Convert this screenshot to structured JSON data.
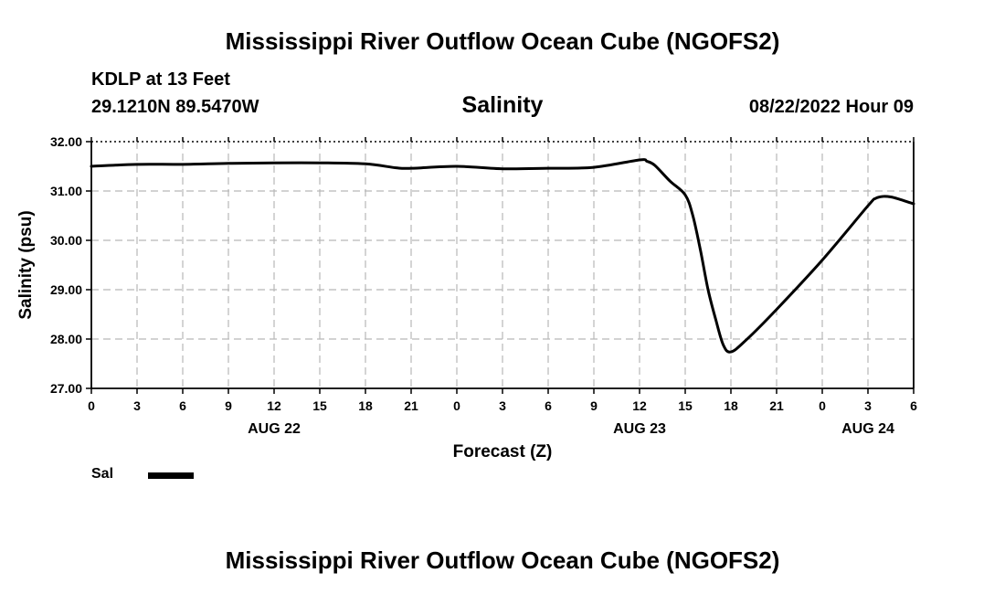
{
  "header": {
    "main_title": "Mississippi River Outflow Ocean Cube (NGOFS2)",
    "station": "KDLP at 13 Feet",
    "coordinates": "29.1210N  89.5470W",
    "run_time": "08/22/2022 Hour 09",
    "bottom_title": "Mississippi River Outflow Ocean Cube (NGOFS2)"
  },
  "legend": {
    "label": "Sal"
  },
  "chart_data": {
    "type": "line",
    "title": "Salinity",
    "xlabel": "Forecast (Z)",
    "ylabel": "Salinity (psu)",
    "ylim": [
      27.0,
      32.0
    ],
    "xlim": [
      0,
      54
    ],
    "y_ticks": [
      27.0,
      28.0,
      29.0,
      30.0,
      31.0,
      32.0
    ],
    "y_tick_labels": [
      "27.00",
      "28.00",
      "29.00",
      "30.00",
      "31.00",
      "32.00"
    ],
    "x_ticks": [
      0,
      3,
      6,
      9,
      12,
      15,
      18,
      21,
      24,
      27,
      30,
      33,
      36,
      39,
      42,
      45,
      48,
      51,
      54
    ],
    "x_tick_labels": [
      "0",
      "3",
      "6",
      "9",
      "12",
      "15",
      "18",
      "21",
      "0",
      "3",
      "6",
      "9",
      "12",
      "15",
      "18",
      "21",
      "0",
      "3",
      "6"
    ],
    "date_labels": [
      {
        "x": 12,
        "label": "AUG 22"
      },
      {
        "x": 36,
        "label": "AUG 23"
      },
      {
        "x": 51,
        "label": "AUG 24"
      }
    ],
    "grid": true,
    "series": [
      {
        "name": "Sal",
        "x": [
          0,
          3,
          6,
          9,
          12,
          15,
          18,
          20,
          21,
          24,
          27,
          30,
          33,
          36,
          36.5,
          37,
          38,
          39,
          39.5,
          40,
          40.5,
          41,
          41.5,
          42,
          43,
          45,
          48,
          51,
          51.5,
          52,
          52.5,
          53,
          54
        ],
        "y": [
          31.5,
          31.54,
          31.54,
          31.56,
          31.57,
          31.57,
          31.55,
          31.47,
          31.46,
          31.5,
          31.45,
          31.46,
          31.48,
          31.63,
          31.6,
          31.52,
          31.2,
          30.92,
          30.5,
          29.8,
          29.0,
          28.4,
          27.88,
          27.74,
          27.98,
          28.6,
          29.6,
          30.7,
          30.85,
          30.89,
          30.88,
          30.84,
          30.74
        ]
      }
    ]
  }
}
